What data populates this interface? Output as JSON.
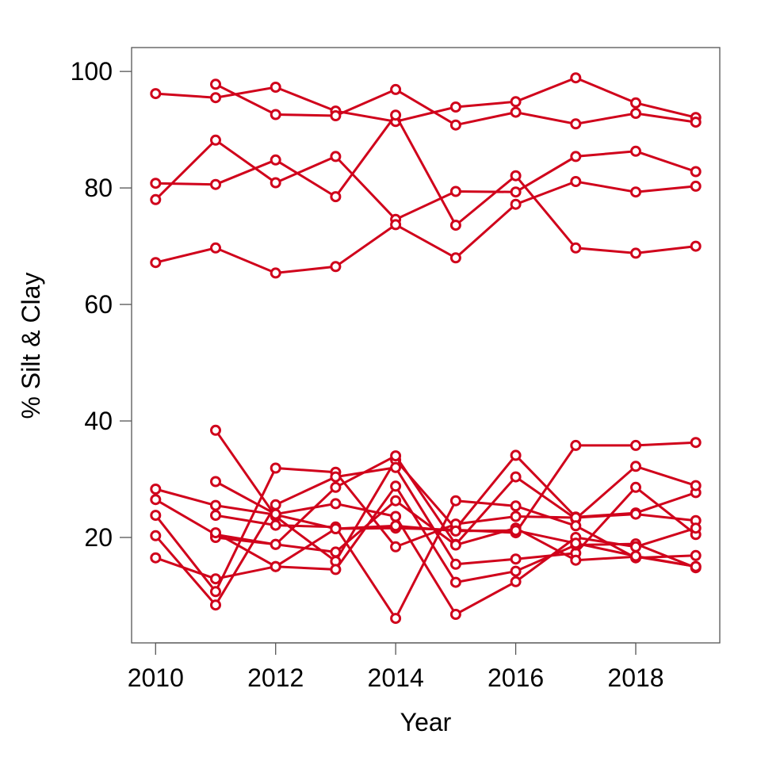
{
  "chart_data": {
    "type": "line",
    "title": "",
    "xlabel": "Year",
    "ylabel": "% Silt & Clay",
    "xlim": [
      2009.6,
      2019.4
    ],
    "ylim": [
      1.9,
      104.1
    ],
    "x_ticks": [
      "2010",
      "2012",
      "2014",
      "2016",
      "2018"
    ],
    "y_ticks": [
      "20",
      "40",
      "60",
      "80",
      "100"
    ],
    "grid": false,
    "legend": "none",
    "series_color": "#d0021b",
    "x": [
      2010,
      2011,
      2012,
      2013,
      2014,
      2015,
      2016,
      2017,
      2018,
      2019
    ],
    "series": [
      {
        "values": [
          96.2,
          95.5,
          97.3,
          93.2,
          91.4,
          93.9,
          94.8,
          98.9,
          94.6,
          92.1
        ]
      },
      {
        "values": [
          null,
          97.8,
          92.6,
          92.4,
          96.9,
          90.8,
          93.0,
          91.0,
          92.8,
          91.3
        ]
      },
      {
        "values": [
          80.8,
          80.6,
          84.8,
          78.5,
          92.5,
          73.6,
          82.1,
          69.7,
          68.8,
          70.0
        ]
      },
      {
        "values": [
          78.0,
          88.2,
          80.9,
          85.4,
          74.6,
          79.4,
          79.3,
          85.4,
          86.3,
          82.8
        ]
      },
      {
        "values": [
          67.2,
          69.7,
          65.4,
          66.5,
          73.7,
          68.0,
          77.2,
          81.1,
          79.3,
          80.3
        ]
      },
      {
        "values": [
          null,
          38.4,
          23.6,
          15.9,
          33.3,
          21.5,
          34.1,
          23.5,
          24.2,
          27.7
        ]
      },
      {
        "values": [
          28.3,
          25.5,
          23.9,
          21.5,
          21.6,
          21.3,
          20.8,
          35.8,
          35.8,
          36.3
        ]
      },
      {
        "values": [
          26.5,
          20.5,
          18.8,
          28.6,
          34.0,
          18.8,
          30.4,
          23.2,
          32.2,
          28.9
        ]
      },
      {
        "values": [
          23.8,
          10.7,
          31.9,
          31.2,
          18.4,
          22.3,
          23.6,
          23.4,
          24.0,
          22.9
        ]
      },
      {
        "values": [
          20.3,
          8.4,
          25.6,
          30.4,
          32.0,
          15.4,
          16.3,
          17.3,
          28.6,
          20.5
        ]
      },
      {
        "values": [
          16.5,
          12.9,
          15.0,
          14.5,
          28.8,
          12.3,
          14.2,
          18.7,
          18.9,
          14.8
        ]
      },
      {
        "values": [
          null,
          20.0,
          18.8,
          17.5,
          26.3,
          18.7,
          21.6,
          16.1,
          16.7,
          15.0
        ]
      },
      {
        "values": [
          null,
          23.8,
          22.1,
          21.8,
          6.1,
          26.3,
          25.4,
          22.0,
          16.5,
          16.9
        ]
      },
      {
        "values": [
          null,
          29.6,
          24.0,
          25.8,
          23.6,
          6.8,
          12.4,
          20.0,
          18.4,
          21.6
        ]
      },
      {
        "values": [
          null,
          20.8,
          15.0,
          21.5,
          22.0,
          21.1,
          21.2,
          19.0,
          16.8,
          15.0
        ]
      }
    ]
  }
}
